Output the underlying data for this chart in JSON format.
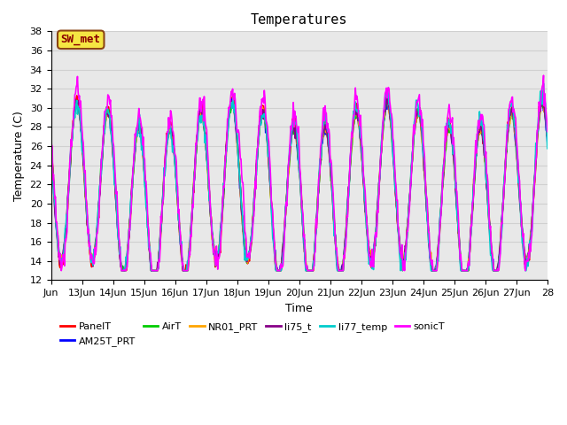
{
  "title": "Temperatures",
  "xlabel": "Time",
  "ylabel": "Temperature (C)",
  "ylim": [
    12,
    38
  ],
  "xlim": [
    0,
    384
  ],
  "xtick_positions": [
    0,
    24,
    48,
    72,
    96,
    120,
    144,
    168,
    192,
    216,
    240,
    264,
    288,
    312,
    336,
    360,
    384
  ],
  "xtick_labels": [
    "Jun",
    "13Jun",
    "14Jun",
    "15Jun",
    "16Jun",
    "17Jun",
    "18Jun",
    "19Jun",
    "20Jun",
    "21Jun",
    "22Jun",
    "23Jun",
    "24Jun",
    "25Jun",
    "26Jun",
    "27Jun",
    "28"
  ],
  "annotation_text": "SW_met",
  "annotation_bg": "#f5e642",
  "annotation_fg": "#8b0000",
  "annotation_border": "#8b4513",
  "grid_color": "#d0d0d0",
  "bg_color": "#e8e8e8",
  "series_order": [
    "PanelT",
    "AM25T_PRT",
    "AirT",
    "NR01_PRT",
    "li75_t",
    "li77_temp",
    "sonicT"
  ],
  "series": {
    "PanelT": {
      "color": "#ff0000",
      "lw": 1.2
    },
    "AM25T_PRT": {
      "color": "#0000ff",
      "lw": 1.2
    },
    "AirT": {
      "color": "#00cc00",
      "lw": 1.2
    },
    "NR01_PRT": {
      "color": "#ffa500",
      "lw": 1.2
    },
    "li75_t": {
      "color": "#880088",
      "lw": 1.2
    },
    "li77_temp": {
      "color": "#00cccc",
      "lw": 1.2
    },
    "sonicT": {
      "color": "#ff00ff",
      "lw": 1.2
    }
  },
  "legend_ncol": 6,
  "title_fontsize": 11,
  "tick_fontsize": 8,
  "label_fontsize": 9
}
